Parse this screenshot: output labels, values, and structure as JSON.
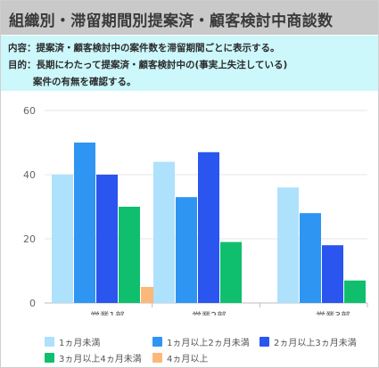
{
  "header": {
    "title": "組織別・滞留期間別提案済・顧客検討中商談数"
  },
  "description": {
    "line1": "内容：提案済・顧客検討中の案件数を滞留期間ごとに表示する。",
    "line2": "目的：長期にわたって提案済・顧客検討中の(事実上失注している)",
    "line3": "案件の有無を確認する。"
  },
  "chart_data": {
    "type": "bar",
    "categories": [
      "営業1部",
      "営業2部",
      "営業3部"
    ],
    "series": [
      {
        "name": "1ヵ月未満",
        "color": "#aee1fb",
        "values": [
          40,
          44,
          36
        ]
      },
      {
        "name": "1ヵ月以上2ヵ月未満",
        "color": "#2e95f2",
        "values": [
          50,
          33,
          28
        ]
      },
      {
        "name": "2ヵ月以上3ヵ月未満",
        "color": "#2a55ef",
        "values": [
          40,
          47,
          18
        ]
      },
      {
        "name": "3ヵ月以上4ヵ月未満",
        "color": "#0fbf6d",
        "values": [
          30,
          19,
          7
        ]
      },
      {
        "name": "4ヵ月以上",
        "color": "#fbb879",
        "values": [
          5,
          0,
          0
        ]
      }
    ],
    "yticks": [
      0,
      20,
      40,
      60
    ],
    "ylim": [
      0,
      60
    ],
    "grid": true,
    "legend_position": "bottom"
  }
}
